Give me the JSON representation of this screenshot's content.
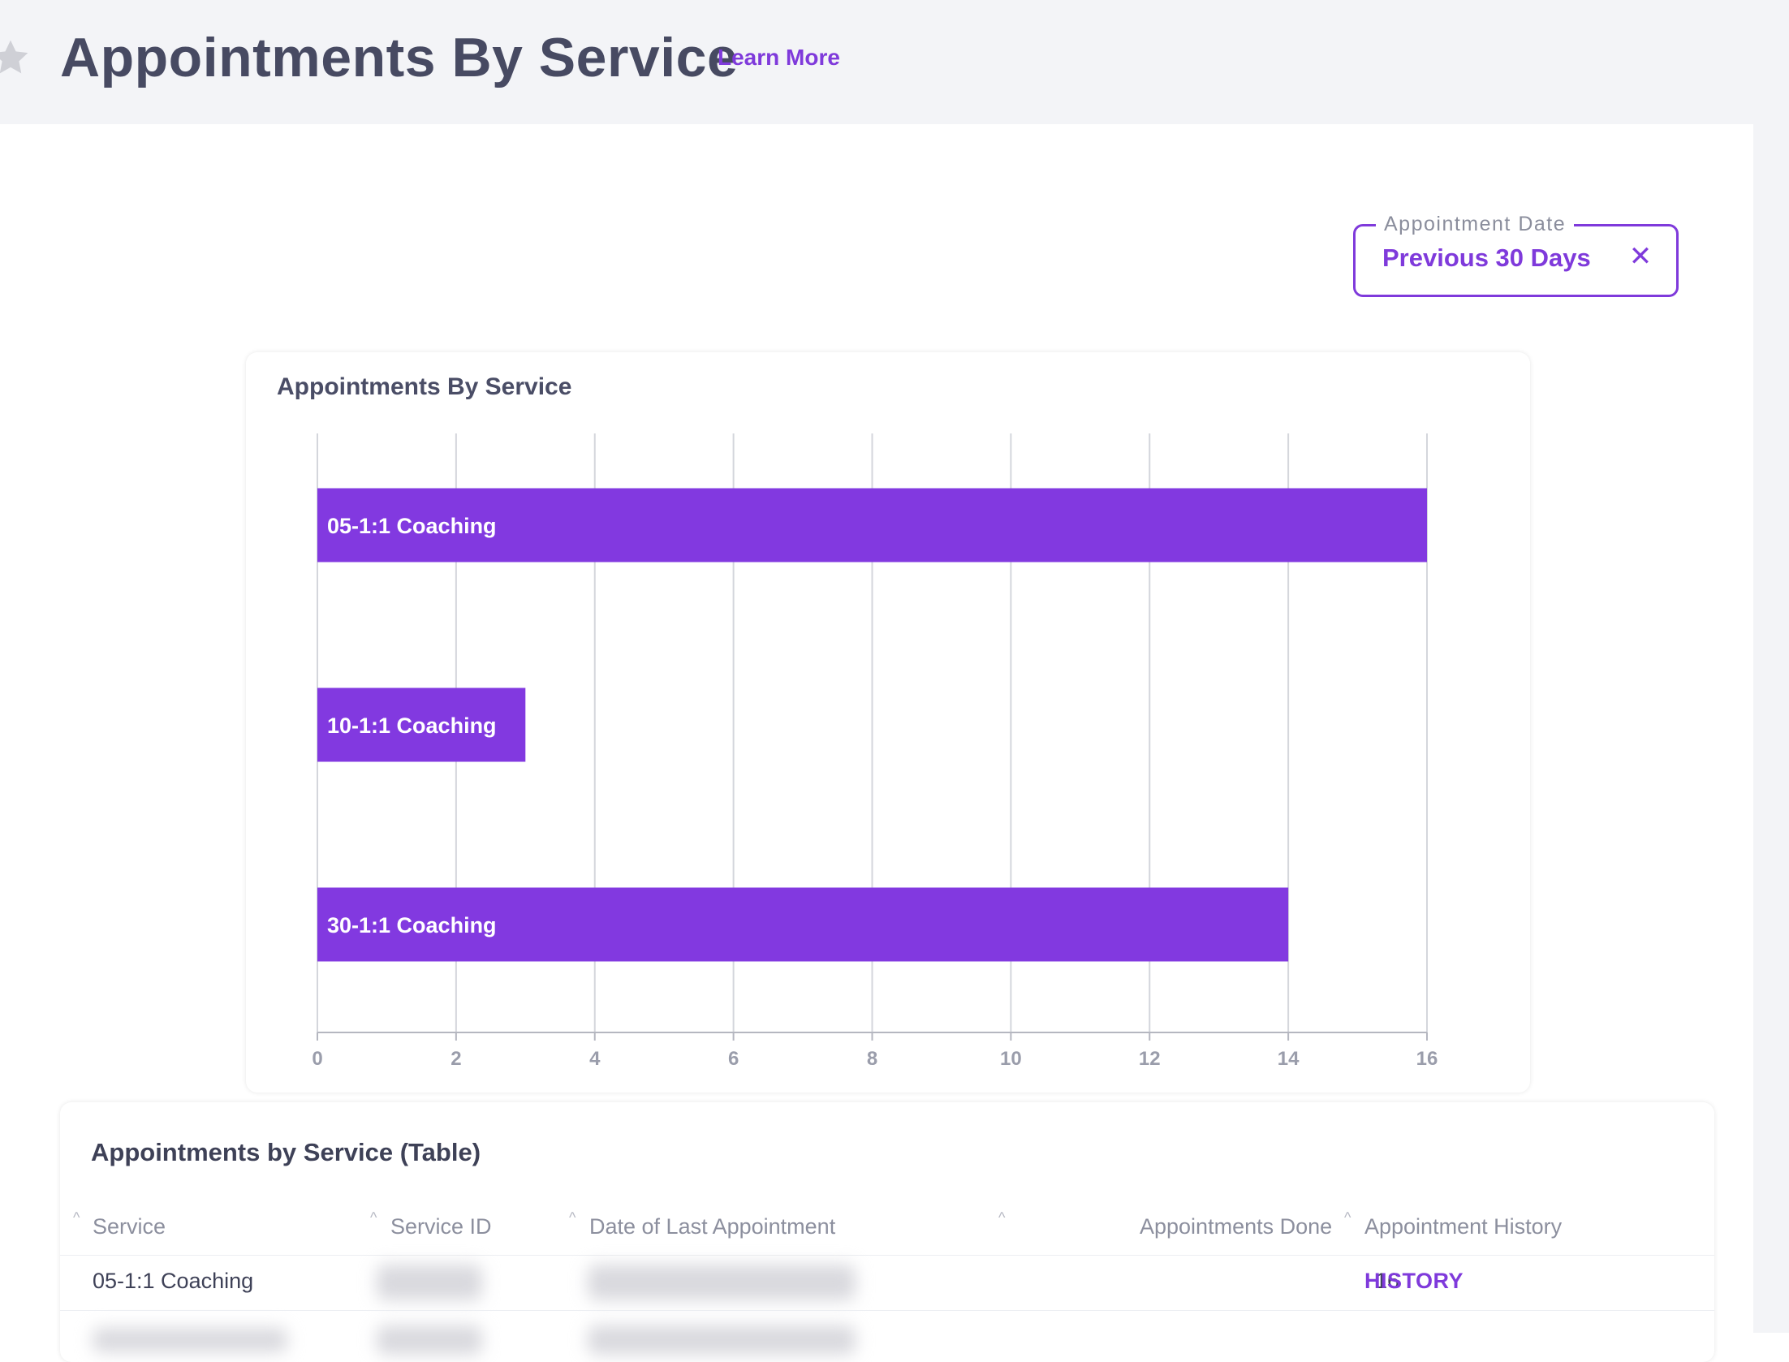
{
  "header": {
    "title": "Appointments By Service",
    "learn_more": "Learn More"
  },
  "filter": {
    "label": "Appointment Date",
    "value": "Previous 30 Days",
    "clear_icon": "close-icon"
  },
  "chart_card": {
    "title": "Appointments By Service"
  },
  "chart_data": {
    "type": "bar",
    "orientation": "horizontal",
    "title": "Appointments By Service",
    "categories": [
      "05-1:1 Coaching",
      "10-1:1 Coaching",
      "30-1:1 Coaching"
    ],
    "values": [
      16,
      3,
      14
    ],
    "xlim": [
      0,
      16
    ],
    "x_ticks": [
      "0",
      "2",
      "4",
      "6",
      "8",
      "10",
      "12",
      "14",
      "16"
    ],
    "grid": true,
    "bar_color": "#8239e0"
  },
  "table": {
    "title": "Appointments by Service (Table)",
    "columns": [
      "Service",
      "Service ID",
      "Date of Last Appointment",
      "Appointments Done",
      "Appointment History"
    ],
    "rows": [
      {
        "service": "05-1:1 Coaching",
        "done": "16",
        "history": "HISTORY"
      }
    ]
  },
  "colors": {
    "accent": "#7f3adb",
    "topbar_bg": "#f3f4f7"
  }
}
